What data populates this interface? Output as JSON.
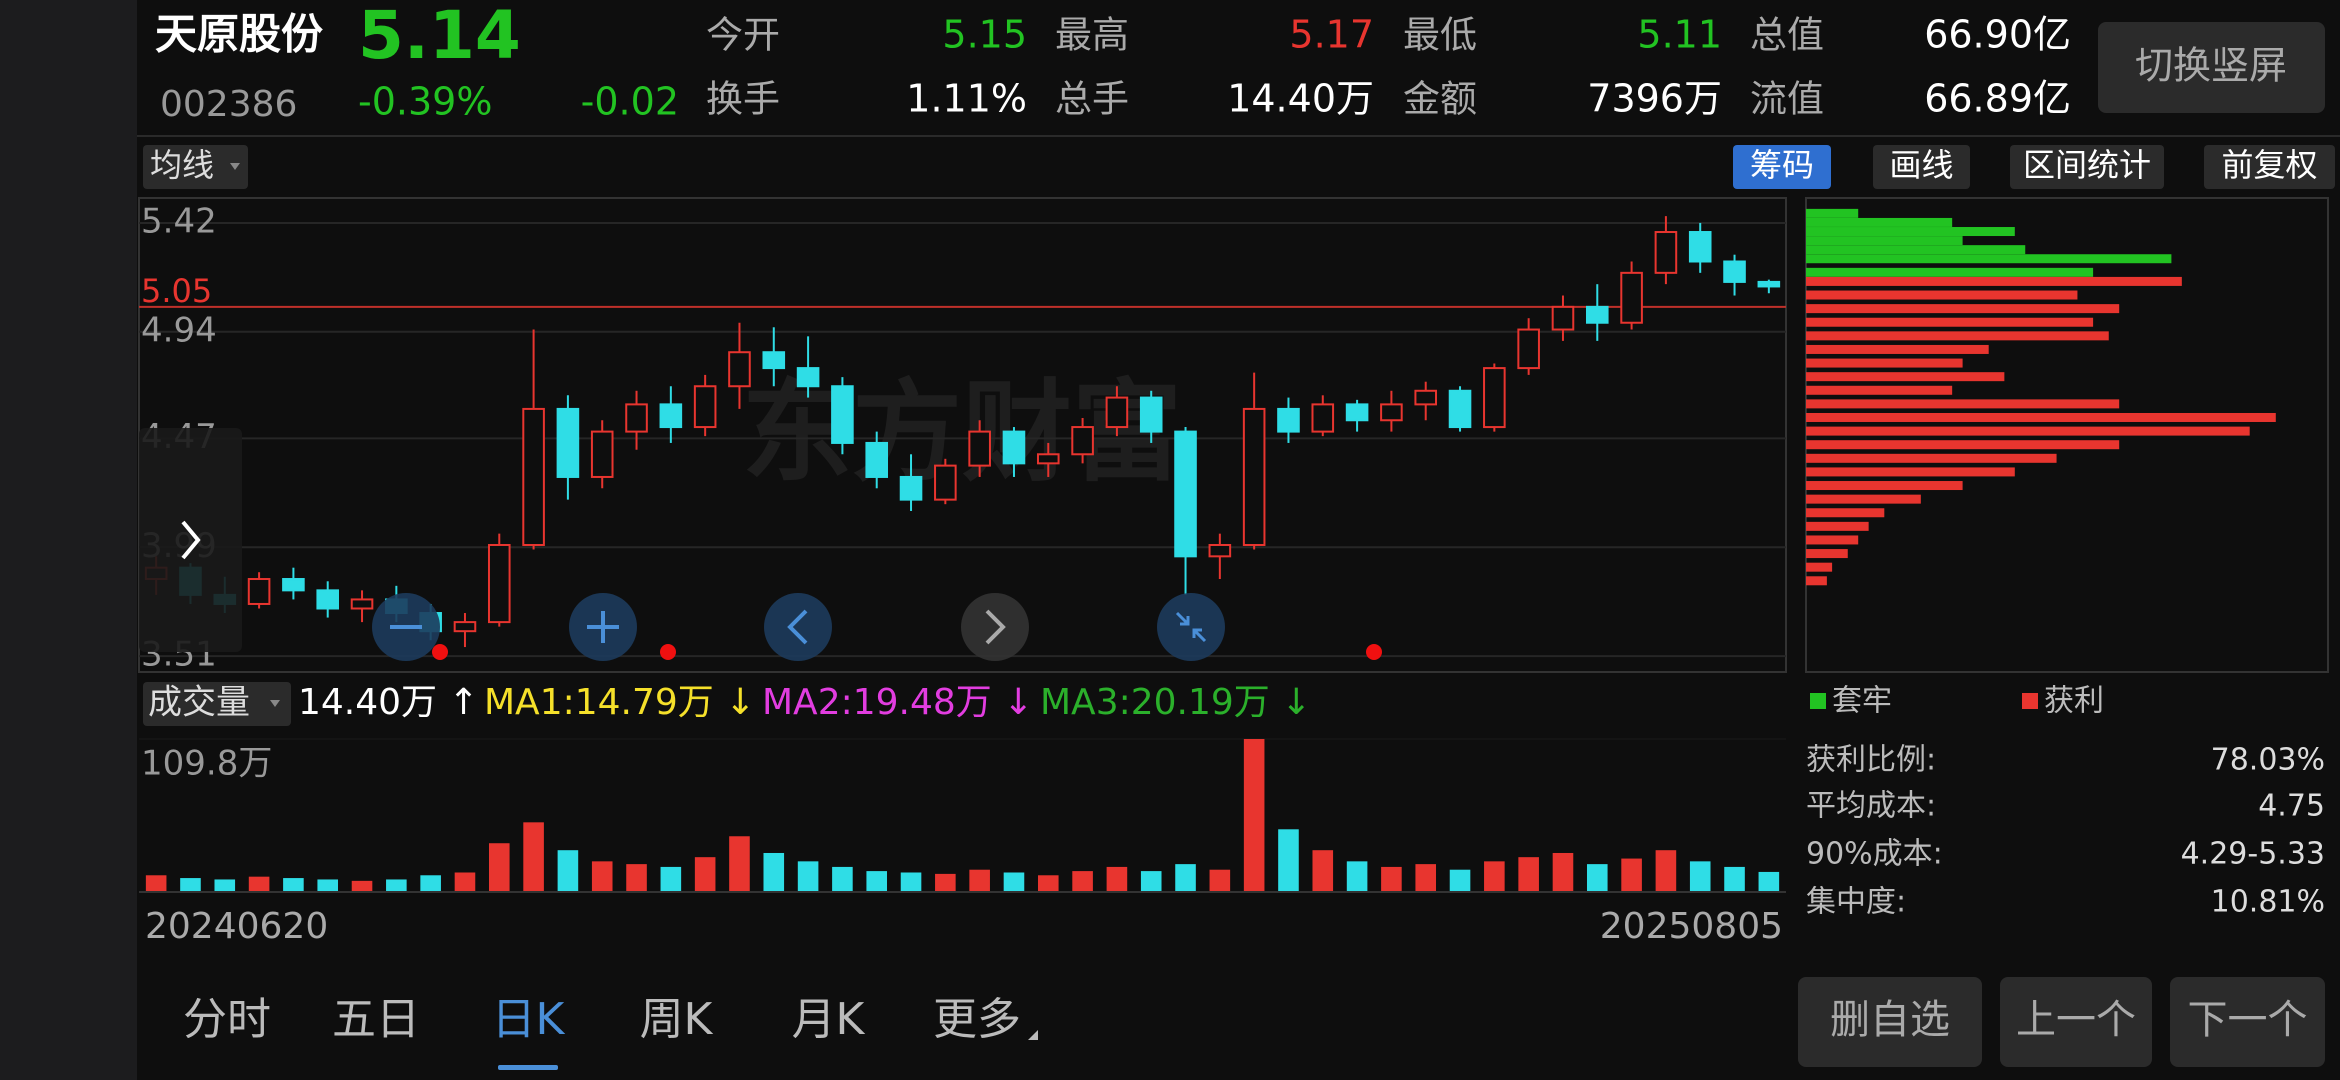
{
  "header": {
    "name": "天原股份",
    "price": "5.14",
    "code": "002386",
    "change_pct": "-0.39%",
    "change": "-0.02",
    "stats": [
      {
        "label": "今开",
        "value": "5.15",
        "color": "#22c322"
      },
      {
        "label": "最高",
        "value": "5.17",
        "color": "#e8352f"
      },
      {
        "label": "最低",
        "value": "5.11",
        "color": "#22c322"
      },
      {
        "label": "总值",
        "value": "66.90亿",
        "color": "#ffffff"
      },
      {
        "label": "换手",
        "value": "1.11%",
        "color": "#ffffff"
      },
      {
        "label": "总手",
        "value": "14.40万",
        "color": "#ffffff"
      },
      {
        "label": "金额",
        "value": "7396万",
        "color": "#ffffff"
      },
      {
        "label": "流值",
        "value": "66.89亿",
        "color": "#ffffff"
      }
    ],
    "switch_button": "切换竖屏"
  },
  "toolbar": {
    "ma_button": "均线",
    "buttons": [
      "筹码",
      "画线",
      "区间统计",
      "前复权"
    ],
    "active": 0
  },
  "watermark": "东方财富",
  "chart_data": [
    {
      "type": "candlestick",
      "ylim": [
        3.44,
        5.53
      ],
      "yticks": [
        5.42,
        4.94,
        4.47,
        3.99,
        3.51
      ],
      "grid": true,
      "price_line": 5.05,
      "up_color": "#e8352f",
      "down_color": "#2fdde6",
      "open": [
        3.85,
        3.9,
        3.78,
        3.74,
        3.85,
        3.8,
        3.72,
        3.76,
        3.7,
        3.62,
        3.66,
        4.0,
        4.6,
        4.3,
        4.5,
        4.62,
        4.52,
        4.7,
        4.85,
        4.78,
        4.7,
        4.45,
        4.3,
        4.2,
        4.35,
        4.5,
        4.36,
        4.4,
        4.52,
        4.65,
        4.5,
        3.95,
        4.0,
        4.6,
        4.5,
        4.62,
        4.55,
        4.62,
        4.68,
        4.52,
        4.78,
        4.95,
        5.05,
        4.98,
        5.2,
        5.38,
        5.25,
        5.16
      ],
      "high": [
        3.95,
        3.92,
        3.86,
        3.88,
        3.9,
        3.84,
        3.8,
        3.82,
        3.74,
        3.7,
        4.05,
        4.95,
        4.66,
        4.55,
        4.68,
        4.7,
        4.75,
        4.98,
        4.96,
        4.92,
        4.74,
        4.5,
        4.4,
        4.38,
        4.55,
        4.52,
        4.45,
        4.56,
        4.7,
        4.68,
        4.52,
        4.05,
        4.76,
        4.65,
        4.66,
        4.64,
        4.68,
        4.72,
        4.7,
        4.8,
        5.0,
        5.1,
        5.15,
        5.25,
        5.45,
        5.42,
        5.28,
        5.17
      ],
      "low": [
        3.78,
        3.74,
        3.7,
        3.72,
        3.76,
        3.68,
        3.66,
        3.66,
        3.58,
        3.55,
        3.64,
        3.98,
        4.2,
        4.25,
        4.42,
        4.45,
        4.48,
        4.6,
        4.7,
        4.65,
        4.4,
        4.25,
        4.15,
        4.18,
        4.3,
        4.3,
        4.3,
        4.36,
        4.48,
        4.45,
        3.78,
        3.85,
        3.98,
        4.45,
        4.48,
        4.5,
        4.5,
        4.55,
        4.5,
        4.5,
        4.75,
        4.9,
        4.9,
        4.95,
        5.15,
        5.2,
        5.1,
        5.11
      ],
      "close": [
        3.9,
        3.78,
        3.74,
        3.85,
        3.8,
        3.72,
        3.76,
        3.7,
        3.62,
        3.66,
        4.0,
        4.6,
        4.3,
        4.5,
        4.62,
        4.52,
        4.7,
        4.85,
        4.78,
        4.7,
        4.45,
        4.3,
        4.2,
        4.35,
        4.5,
        4.36,
        4.4,
        4.52,
        4.65,
        4.5,
        3.95,
        4.0,
        4.6,
        4.5,
        4.62,
        4.55,
        4.62,
        4.68,
        4.52,
        4.78,
        4.95,
        5.05,
        4.98,
        5.2,
        5.38,
        5.25,
        5.16,
        5.14
      ]
    },
    {
      "type": "bar",
      "title": "成交量",
      "ylim": [
        0,
        109.8
      ],
      "yticks": [
        {
          "value": 109.8,
          "label": "109.8万"
        }
      ],
      "indicators": [
        {
          "text": "14.40万 ↑",
          "color": "#ffffff"
        },
        {
          "text": "MA1:14.79万 ↓",
          "color": "#f5e02a"
        },
        {
          "text": "MA2:19.48万 ↓",
          "color": "#e23de0"
        },
        {
          "text": "MA3:20.19万 ↓",
          "color": "#2bb02b"
        }
      ],
      "x_labels": [
        "20240620",
        "20250805"
      ],
      "values": [
        12,
        10,
        9,
        11,
        10,
        9,
        8,
        9,
        12,
        14,
        35,
        50,
        30,
        22,
        20,
        18,
        25,
        40,
        28,
        22,
        18,
        15,
        14,
        13,
        16,
        14,
        12,
        15,
        18,
        15,
        20,
        16,
        109.8,
        45,
        30,
        22,
        18,
        20,
        16,
        22,
        25,
        28,
        20,
        24,
        30,
        22,
        18,
        14.4
      ]
    },
    {
      "type": "hbar",
      "xlim": [
        0,
        100
      ],
      "series": [
        {
          "name": "套牢",
          "color": "#22c322",
          "prices": [
            5.46,
            5.42,
            5.38,
            5.34,
            5.3,
            5.26,
            5.2
          ],
          "values": [
            10,
            28,
            40,
            30,
            42,
            70,
            55
          ]
        },
        {
          "name": "获利",
          "color": "#e8352f",
          "prices": [
            5.16,
            5.1,
            5.04,
            4.98,
            4.92,
            4.86,
            4.8,
            4.74,
            4.68,
            4.62,
            4.56,
            4.5,
            4.44,
            4.38,
            4.32,
            4.26,
            4.2,
            4.14,
            4.08,
            4.02,
            3.96,
            3.9,
            3.84
          ],
          "values": [
            72,
            52,
            60,
            55,
            58,
            35,
            30,
            38,
            28,
            60,
            90,
            85,
            60,
            48,
            40,
            30,
            22,
            15,
            12,
            10,
            8,
            5,
            4
          ]
        }
      ],
      "stats": [
        {
          "label": "获利比例:",
          "value": "78.03%"
        },
        {
          "label": "平均成本:",
          "value": "4.75"
        },
        {
          "label": "90%成本:",
          "value": "4.29-5.33"
        },
        {
          "label": "集中度:",
          "value": "10.81%"
        }
      ]
    }
  ],
  "tabs": {
    "items": [
      "分时",
      "五日",
      "日K",
      "周K",
      "月K",
      "更多"
    ],
    "active": 2
  },
  "actions": [
    "删自选",
    "上一个",
    "下一个"
  ]
}
